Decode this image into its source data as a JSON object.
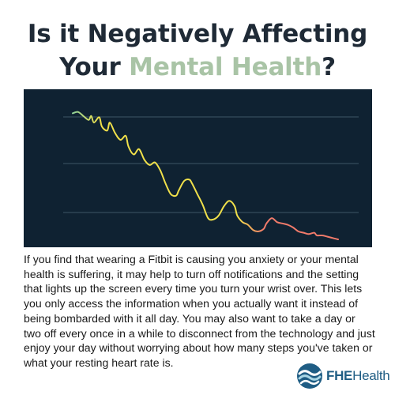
{
  "header": {
    "title_part1": "Is it Negatively Affecting",
    "title_part2": "Your ",
    "title_accent": "Mental Health",
    "title_end": "?"
  },
  "colors": {
    "title": "#1f2a36",
    "accent": "#a9c4a6",
    "chart_background": "#0f2232",
    "grid": "#3d5566",
    "line_start": "#8fd19a",
    "line_middle": "#f0e04a",
    "line_end": "#f07a6a",
    "logo": "#1f5d84"
  },
  "chart_data": {
    "type": "line",
    "title": "",
    "xlabel": "",
    "ylabel": "",
    "grid": true,
    "axis_tick_labels": false,
    "ylim": [
      0,
      100
    ],
    "xlim": [
      0,
      100
    ],
    "x": [
      0,
      2,
      4,
      6,
      7,
      8,
      10,
      11,
      13,
      14,
      16,
      18,
      20,
      21,
      23,
      25,
      27,
      29,
      31,
      33,
      35,
      37,
      39,
      40,
      42,
      44,
      45,
      47,
      49,
      51,
      53,
      55,
      57,
      59,
      61,
      62,
      64,
      66,
      68,
      70,
      72,
      73,
      75,
      77,
      79,
      81,
      83,
      85,
      87,
      89,
      91,
      92,
      94,
      96,
      98,
      100
    ],
    "values": [
      95,
      96,
      93,
      90,
      93,
      88,
      92,
      85,
      82,
      88,
      80,
      75,
      78,
      70,
      64,
      68,
      60,
      56,
      58,
      52,
      42,
      34,
      33,
      37,
      44,
      45,
      42,
      34,
      26,
      16,
      15,
      18,
      25,
      29,
      25,
      18,
      13,
      11,
      7,
      6,
      8,
      12,
      16,
      13,
      12,
      11,
      9,
      6,
      5,
      4,
      5,
      3,
      3,
      2,
      1,
      0
    ]
  },
  "body": {
    "text": "If you find that wearing a Fitbit is causing you anxiety or your mental health is suffering, it may help to turn off notifications and the setting that lights up the screen every time you turn your wrist over. This lets you only access the information when you actually want it instead of being bombarded with it all day. You may also want to take a day or two off every once in a while to disconnect from the technology and just enjoy your day without worrying about how many steps you've taken or what your resting heart rate is."
  },
  "logo": {
    "icon": "wave-logo-icon",
    "name_bold": "FHE",
    "name_regular": "Health"
  }
}
